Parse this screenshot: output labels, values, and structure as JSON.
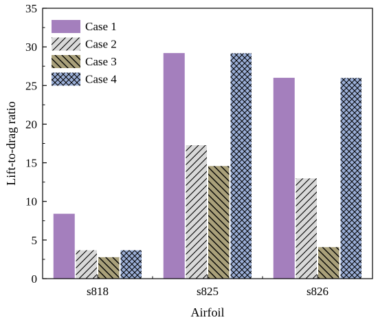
{
  "chart_data": {
    "type": "bar",
    "title": "",
    "xlabel": "Airfoil",
    "ylabel": "Lift-to-drag ratio",
    "categories": [
      "s818",
      "s825",
      "s826"
    ],
    "ylim": [
      0,
      35
    ],
    "yticks": [
      0,
      5,
      10,
      15,
      20,
      25,
      30,
      35
    ],
    "grid": false,
    "legend_position": "top-left",
    "series": [
      {
        "name": "Case 1",
        "values": [
          8.4,
          29.2,
          26.0
        ],
        "color": "#a47fbd",
        "pattern": "solid"
      },
      {
        "name": "Case 2",
        "values": [
          3.7,
          17.3,
          13.0
        ],
        "color": "#d9d9d9",
        "pattern": "diagonal-right"
      },
      {
        "name": "Case 3",
        "values": [
          2.8,
          14.6,
          4.1
        ],
        "color": "#a9a07a",
        "pattern": "diagonal-left"
      },
      {
        "name": "Case 4",
        "values": [
          3.7,
          29.2,
          26.0
        ],
        "color": "#9aaed6",
        "pattern": "crosshatch"
      }
    ]
  }
}
